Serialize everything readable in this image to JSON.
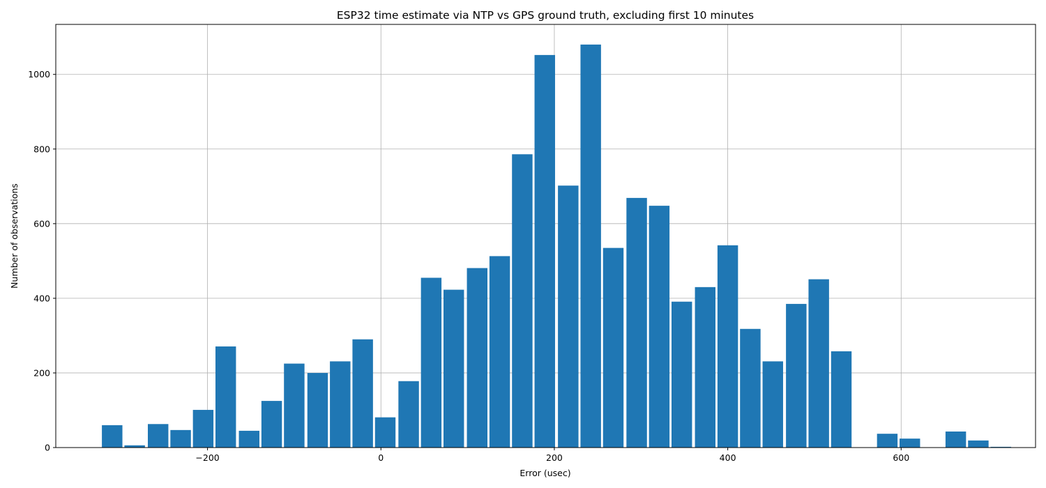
{
  "chart_data": {
    "type": "bar",
    "title": "ESP32 time estimate via NTP vs GPS ground truth, excluding first 10 minutes",
    "xlabel": "Error (usec)",
    "ylabel": "Number of observations",
    "xlim": [
      -375,
      755
    ],
    "ylim": [
      0,
      1134
    ],
    "x_ticks": [
      -200,
      0,
      200,
      400,
      600
    ],
    "x_tick_labels": [
      "−200",
      "0",
      "200",
      "400",
      "600"
    ],
    "y_ticks": [
      0,
      200,
      400,
      600,
      800,
      1000
    ],
    "y_tick_labels": [
      "0",
      "200",
      "400",
      "600",
      "800",
      "1000"
    ],
    "grid": true,
    "bar_color": "#1f77b4",
    "bin_width": 26.3,
    "bins": [
      {
        "x": -310,
        "value": 60
      },
      {
        "x": -284,
        "value": 6
      },
      {
        "x": -257,
        "value": 63
      },
      {
        "x": -231,
        "value": 47
      },
      {
        "x": -205,
        "value": 101
      },
      {
        "x": -179,
        "value": 271
      },
      {
        "x": -152,
        "value": 45
      },
      {
        "x": -126,
        "value": 125
      },
      {
        "x": -100,
        "value": 225
      },
      {
        "x": -73,
        "value": 200
      },
      {
        "x": -47,
        "value": 231
      },
      {
        "x": -21,
        "value": 290
      },
      {
        "x": 5,
        "value": 81
      },
      {
        "x": 32,
        "value": 178
      },
      {
        "x": 58,
        "value": 455
      },
      {
        "x": 84,
        "value": 423
      },
      {
        "x": 111,
        "value": 481
      },
      {
        "x": 137,
        "value": 513
      },
      {
        "x": 163,
        "value": 786
      },
      {
        "x": 189,
        "value": 1052
      },
      {
        "x": 216,
        "value": 702
      },
      {
        "x": 242,
        "value": 1080
      },
      {
        "x": 268,
        "value": 535
      },
      {
        "x": 295,
        "value": 669
      },
      {
        "x": 321,
        "value": 648
      },
      {
        "x": 347,
        "value": 391
      },
      {
        "x": 374,
        "value": 430
      },
      {
        "x": 400,
        "value": 542
      },
      {
        "x": 426,
        "value": 318
      },
      {
        "x": 452,
        "value": 231
      },
      {
        "x": 479,
        "value": 385
      },
      {
        "x": 505,
        "value": 451
      },
      {
        "x": 531,
        "value": 258
      },
      {
        "x": 584,
        "value": 37
      },
      {
        "x": 610,
        "value": 24
      },
      {
        "x": 663,
        "value": 43
      },
      {
        "x": 689,
        "value": 19
      },
      {
        "x": 715,
        "value": 2
      }
    ]
  }
}
